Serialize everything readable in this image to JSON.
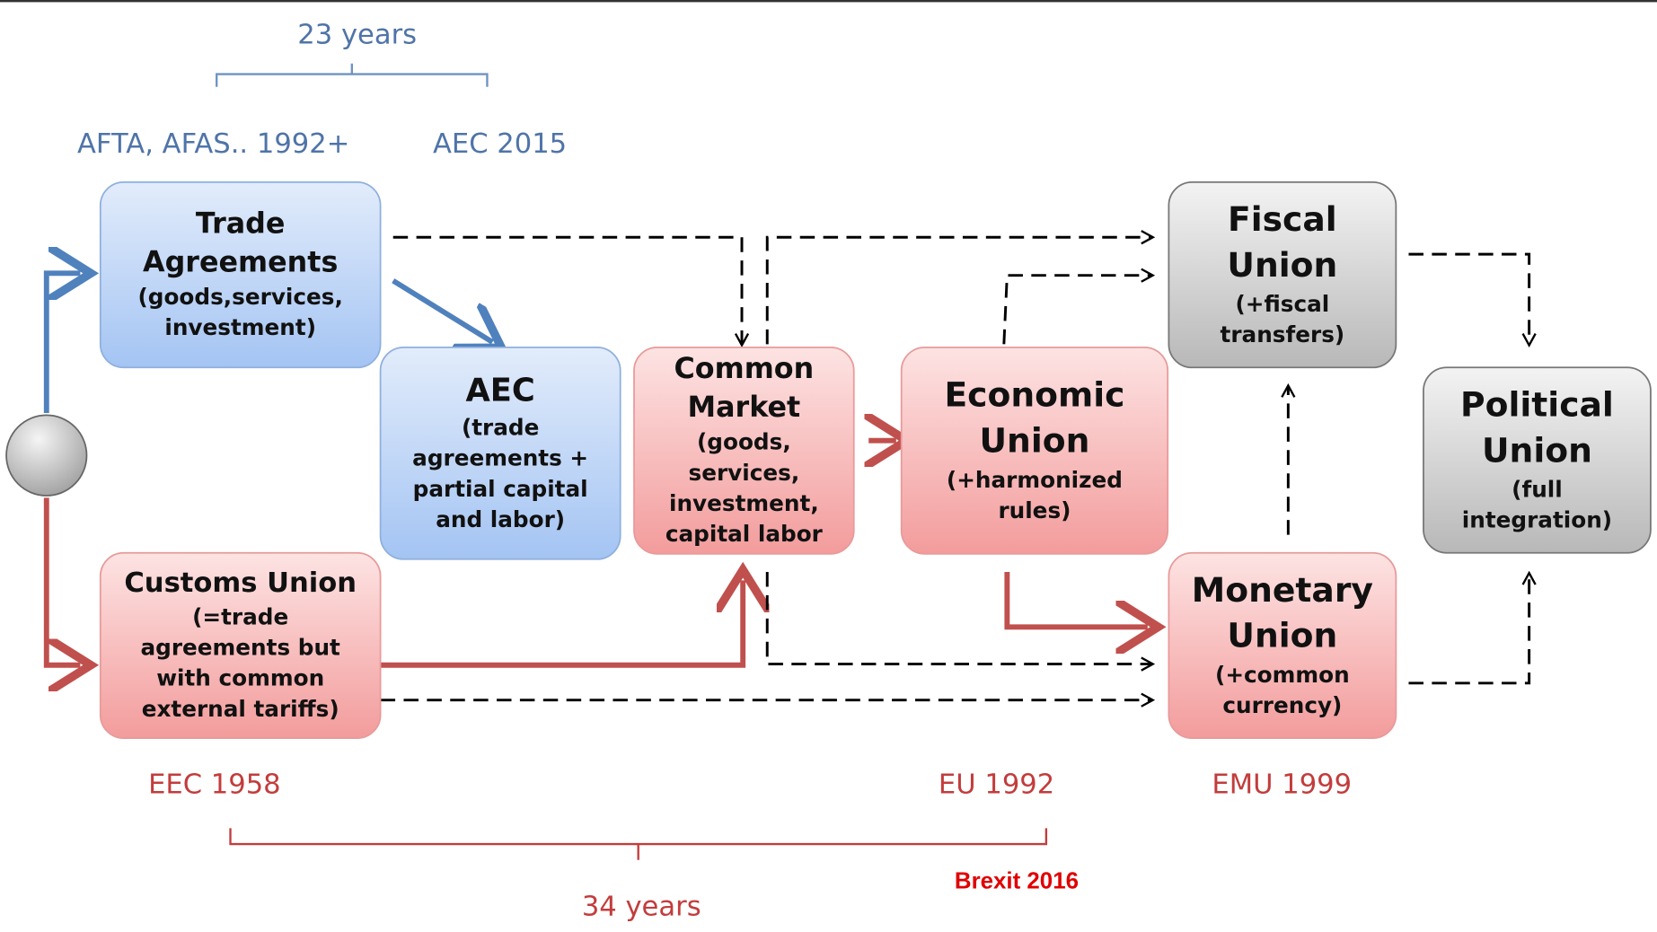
{
  "annotations": {
    "top_span": "23 years",
    "afta": "AFTA, AFAS.. 1992+",
    "aec_year": "AEC 2015",
    "eec": "EEC 1958",
    "eu": "EU 1992",
    "emu": "EMU 1999",
    "brexit": "Brexit 2016",
    "bottom_span": "34 years"
  },
  "nodes": [
    {
      "title": [
        "Trade",
        "Agreements"
      ],
      "detail": [
        "(goods,services,",
        "investment)"
      ]
    },
    {
      "title": [
        "AEC"
      ],
      "detail": [
        "(trade",
        "agreements +",
        "partial capital",
        "and labor)"
      ]
    },
    {
      "title": [
        "Common",
        "Market"
      ],
      "detail": [
        "(goods,",
        "services,",
        "investment,",
        "capital labor"
      ]
    },
    {
      "title": [
        "Economic",
        "Union"
      ],
      "detail": [
        "(+harmonized",
        "rules)"
      ]
    },
    {
      "title": [
        "Fiscal",
        "Union"
      ],
      "detail": [
        "(+fiscal",
        "transfers)"
      ]
    },
    {
      "title": [
        "Political",
        "Union"
      ],
      "detail": [
        "(full",
        "integration)"
      ]
    },
    {
      "title": [
        "Customs Union"
      ],
      "detail": [
        "(=trade",
        "agreements but",
        "with common",
        "external tariffs)"
      ]
    },
    {
      "title": [
        "Monetary",
        "Union"
      ],
      "detail": [
        "(+common",
        "currency)"
      ]
    }
  ]
}
